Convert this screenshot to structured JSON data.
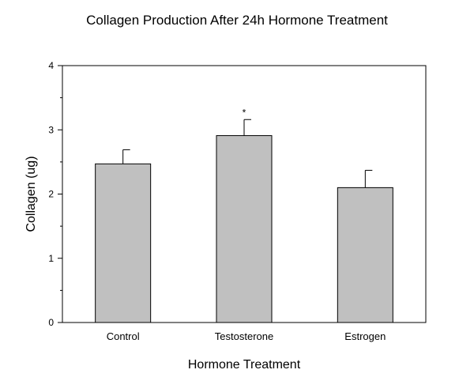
{
  "chart_data": {
    "type": "bar",
    "title": "Collagen Production After 24h Hormone Treatment",
    "xlabel": "Hormone Treatment",
    "ylabel": "Collagen (ug)",
    "categories": [
      "Control",
      "Testosterone",
      "Estrogen"
    ],
    "values": [
      2.47,
      2.91,
      2.1
    ],
    "error": [
      0.22,
      0.25,
      0.27
    ],
    "annotations": [
      "",
      "*",
      ""
    ],
    "ylim": [
      0,
      4
    ],
    "yticks": [
      0,
      1,
      2,
      3,
      4
    ],
    "ytick_labels": [
      "0",
      "1",
      "2",
      "3",
      "4"
    ],
    "grid": false,
    "colors": {
      "bar_fill": "#c0c0c0",
      "bar_stroke": "#000000",
      "axis": "#000000"
    }
  }
}
